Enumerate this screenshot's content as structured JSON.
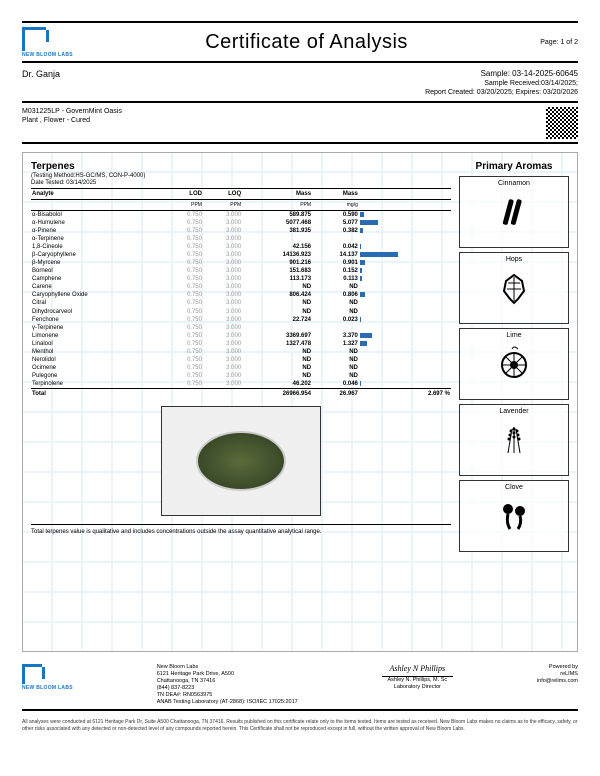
{
  "header": {
    "logo_label": "NEW BLOOM LABS",
    "title": "Certificate of Analysis",
    "page": "Page: 1 of 2"
  },
  "client": {
    "name": "Dr. Ganja",
    "sample_id_label": "Sample: 03-14-2025-60645",
    "sample_received": "Sample Received:03/14/2025;",
    "report_created": "Report Created: 03/20/2025; Expires: 03/20/2026"
  },
  "product": {
    "code": "M031225LP - GovernMint Oasis",
    "type": "Plant , Flower - Cured"
  },
  "terpenes": {
    "title": "Terpenes",
    "method": "(Testing Method:HS-GC/MS, CON-P-4000)",
    "date": "Date Tested: 03/14/2025",
    "headers": [
      "Analyte",
      "LOD",
      "LOQ",
      "Mass",
      "Mass",
      ""
    ],
    "subheaders": [
      "",
      "PPM",
      "PPM",
      "PPM",
      "mg/g",
      ""
    ],
    "rows": [
      {
        "name": "α-Bisabolol",
        "lod": "0.750",
        "loq": "3.000",
        "ppm": "589.875",
        "mgg": "0.590",
        "bar": 4
      },
      {
        "name": "α-Humulene",
        "lod": "0.750",
        "loq": "3.000",
        "ppm": "5077.468",
        "mgg": "5.077",
        "bar": 18
      },
      {
        "name": "α-Pinene",
        "lod": "0.750",
        "loq": "3.000",
        "ppm": "381.935",
        "mgg": "0.382",
        "bar": 3
      },
      {
        "name": "α-Terpinene",
        "lod": "0.750",
        "loq": "3.000",
        "ppm": "<LOQ",
        "mgg": "<LOQ",
        "bar": 0
      },
      {
        "name": "1,8-Cineole",
        "lod": "0.750",
        "loq": "3.000",
        "ppm": "42.156",
        "mgg": "0.042",
        "bar": 1
      },
      {
        "name": "β-Caryophyllene",
        "lod": "0.750",
        "loq": "3.000",
        "ppm": "14136.923",
        "mgg": "14.137",
        "bar": 38
      },
      {
        "name": "β-Myrcene",
        "lod": "0.750",
        "loq": "3.000",
        "ppm": "901.216",
        "mgg": "0.901",
        "bar": 5
      },
      {
        "name": "Borneol",
        "lod": "0.750",
        "loq": "3.000",
        "ppm": "151.683",
        "mgg": "0.152",
        "bar": 2
      },
      {
        "name": "Camphene",
        "lod": "0.750",
        "loq": "3.000",
        "ppm": "113.173",
        "mgg": "0.113",
        "bar": 2
      },
      {
        "name": "Carene",
        "lod": "0.750",
        "loq": "3.000",
        "ppm": "ND",
        "mgg": "ND",
        "bar": 0
      },
      {
        "name": "Caryophyllene Oxide",
        "lod": "0.750",
        "loq": "3.000",
        "ppm": "806.424",
        "mgg": "0.806",
        "bar": 5
      },
      {
        "name": "Citral",
        "lod": "0.750",
        "loq": "3.000",
        "ppm": "ND",
        "mgg": "ND",
        "bar": 0
      },
      {
        "name": "Dihydrocarveol",
        "lod": "0.750",
        "loq": "3.000",
        "ppm": "ND",
        "mgg": "ND",
        "bar": 0
      },
      {
        "name": "Fenchone",
        "lod": "0.750",
        "loq": "3.000",
        "ppm": "22.724",
        "mgg": "0.023",
        "bar": 1
      },
      {
        "name": "γ-Terpinene",
        "lod": "0.750",
        "loq": "3.000",
        "ppm": "<LOQ",
        "mgg": "<LOQ",
        "bar": 0
      },
      {
        "name": "Limonene",
        "lod": "0.750",
        "loq": "3.000",
        "ppm": "3369.697",
        "mgg": "3.370",
        "bar": 12
      },
      {
        "name": "Linalool",
        "lod": "0.750",
        "loq": "3.000",
        "ppm": "1327.478",
        "mgg": "1.327",
        "bar": 7
      },
      {
        "name": "Menthol",
        "lod": "0.750",
        "loq": "3.000",
        "ppm": "ND",
        "mgg": "ND",
        "bar": 0
      },
      {
        "name": "Nerolidol",
        "lod": "0.750",
        "loq": "3.000",
        "ppm": "ND",
        "mgg": "ND",
        "bar": 0
      },
      {
        "name": "Ocimene",
        "lod": "0.750",
        "loq": "3.000",
        "ppm": "ND",
        "mgg": "ND",
        "bar": 0
      },
      {
        "name": "Pulegone",
        "lod": "0.750",
        "loq": "3.000",
        "ppm": "ND",
        "mgg": "ND",
        "bar": 0
      },
      {
        "name": "Terpinolene",
        "lod": "0.750",
        "loq": "3.000",
        "ppm": "46.202",
        "mgg": "0.046",
        "bar": 1
      }
    ],
    "total": {
      "name": "Total",
      "ppm": "26966.954",
      "mgg": "26.967",
      "pct": "2.697 %"
    },
    "note": "Total terpenes value is qualitative and includes concentrations outside the assay quantitative analytical range."
  },
  "aromas": {
    "title": "Primary Aromas",
    "items": [
      "Cinnamon",
      "Hops",
      "Lime",
      "Lavender",
      "Clove"
    ]
  },
  "footer": {
    "addr1": "New Bloom Labs",
    "addr2": "6121 Heritage Park Drive, A500",
    "addr3": "Chattanooga, TN 37416",
    "addr4": "(844) 837-8223",
    "addr5": "TN DEA#: RN0563975",
    "addr6": "ANAB Testing Laboratory (AT-2868): ISO/IEC 17025:2017",
    "sig_name": "Ashley N Phillips",
    "sig_title1": "Ashley N. Phillips, M. Sc",
    "sig_title2": "Laboratory Director",
    "powered": "Powered by",
    "powered_name": "reLIMS",
    "powered_email": "info@relims.com"
  },
  "disclaimer": "All analyses were conducted at 6121 Heritage Park Dr, Suite A500 Chattanooga, TN 37416. Results published on this certificate relate only to the items tested. Items are tested as received. New Bloom Labs makes no claims as to the efficacy, safety, or other risks associated with any detected or non-detected level of any compounds reported herein. This Certificate shall not be reproduced except in full, without the written approval of New Bloom Labs."
}
